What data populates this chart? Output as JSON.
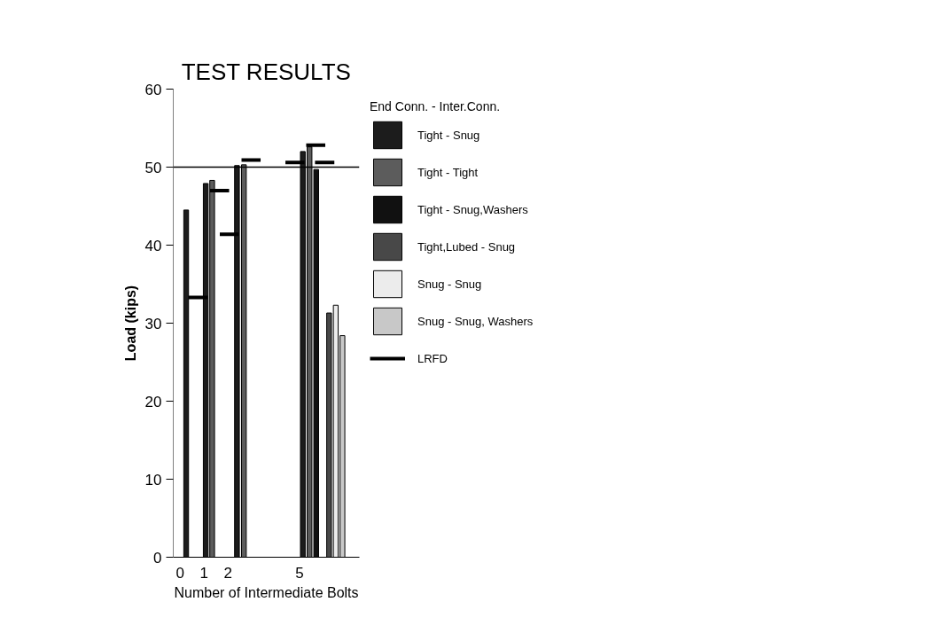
{
  "chart_data": {
    "type": "bar",
    "title": "TEST RESULTS",
    "xlabel": "Number of Intermediate Bolts",
    "ylabel": "Load (kips)",
    "legend_title": "End Conn. - Inter.Conn.",
    "legend": "right",
    "grid": false,
    "xlim": [
      -0.29,
      7.51
    ],
    "xticks": [
      0,
      1,
      2,
      5
    ],
    "ylim": [
      0,
      60
    ],
    "yticks": [
      0,
      10,
      20,
      30,
      40,
      50,
      60
    ],
    "ref_lines": [
      {
        "axis": "y",
        "value": 50,
        "label": null,
        "color": "#000000"
      }
    ],
    "series": [
      {
        "name": "Tight - Snug",
        "color": "#1c1c1c",
        "x": [
          0.25,
          1.07,
          2.38,
          5.14
        ],
        "values": [
          44.5,
          47.9,
          50.2,
          52.0
        ]
      },
      {
        "name": "Tight - Tight",
        "color": "#5c5c5c",
        "x": [
          1.34,
          2.67,
          5.42
        ],
        "values": [
          48.3,
          50.3,
          52.6
        ]
      },
      {
        "name": "Tight - Snug,Washers",
        "color": "#111111",
        "x": [
          5.7
        ],
        "values": [
          49.7
        ]
      },
      {
        "name": "Tight,Lubed - Snug",
        "color": "#484848",
        "x": [
          6.24
        ],
        "values": [
          31.3
        ]
      },
      {
        "name": "Snug - Snug",
        "color": "#ececec",
        "x": [
          6.52
        ],
        "values": [
          32.3
        ]
      },
      {
        "name": "Snug - Snug, Washers",
        "color": "#c8c8c8",
        "x": [
          6.8
        ],
        "values": [
          28.4
        ]
      },
      {
        "type": "line",
        "name": "LRFD",
        "color": "#000000",
        "line_style": "solid",
        "x": [
          0.35,
          1.16,
          null,
          1.25,
          2.05,
          null,
          1.66,
          2.46,
          null,
          2.57,
          3.37,
          null,
          4.41,
          5.21,
          null,
          5.28,
          6.08,
          null,
          5.65,
          6.46
        ],
        "values": [
          33.3,
          33.3,
          null,
          47.0,
          47.0,
          null,
          41.4,
          41.4,
          null,
          50.9,
          50.9,
          null,
          50.6,
          50.6,
          null,
          52.8,
          52.8,
          null,
          50.6,
          50.6
        ]
      }
    ]
  }
}
